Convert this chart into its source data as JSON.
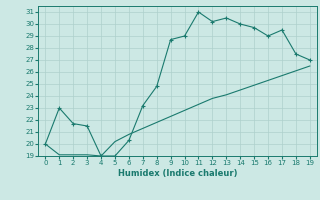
{
  "xlabel": "Humidex (Indice chaleur)",
  "x_values": [
    0,
    1,
    2,
    3,
    4,
    5,
    6,
    7,
    8,
    9,
    10,
    11,
    12,
    13,
    14,
    15,
    16,
    17,
    18,
    19
  ],
  "line1_y": [
    20,
    23,
    21.7,
    21.5,
    19,
    19,
    20.3,
    23.2,
    24.8,
    28.7,
    29.0,
    31.0,
    30.2,
    30.5,
    30.0,
    29.7,
    29.0,
    29.5,
    27.5,
    27.0
  ],
  "line2_y": [
    20,
    19.1,
    19.1,
    19.1,
    19.0,
    20.2,
    20.8,
    21.3,
    21.8,
    22.3,
    22.8,
    23.3,
    23.8,
    24.1,
    24.5,
    24.9,
    25.3,
    25.7,
    26.1,
    26.5
  ],
  "ylim": [
    19,
    31.5
  ],
  "xlim": [
    -0.5,
    19.5
  ],
  "yticks": [
    19,
    20,
    21,
    22,
    23,
    24,
    25,
    26,
    27,
    28,
    29,
    30,
    31
  ],
  "xticks": [
    0,
    1,
    2,
    3,
    4,
    5,
    6,
    7,
    8,
    9,
    10,
    11,
    12,
    13,
    14,
    15,
    16,
    17,
    18,
    19
  ],
  "line_color": "#1a7a6e",
  "bg_color": "#cce8e4",
  "grid_color": "#aed0cc",
  "figsize": [
    3.2,
    2.0
  ],
  "dpi": 100
}
